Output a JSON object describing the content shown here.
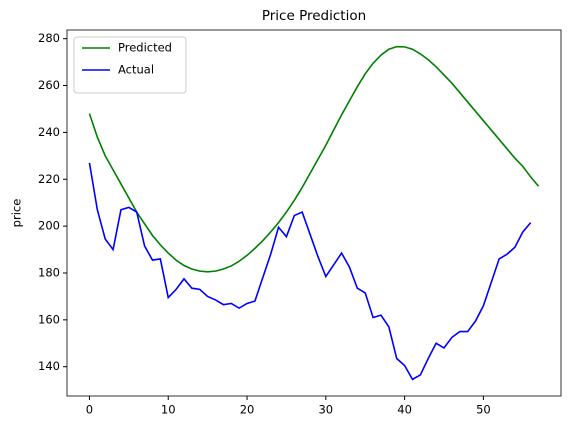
{
  "chart_data": {
    "type": "line",
    "title": "Price Prediction",
    "ylabel": "price",
    "xlim": [
      -2.85,
      59.85
    ],
    "ylim": [
      127.5,
      283.7
    ],
    "xticks": [
      0,
      10,
      20,
      30,
      40,
      50
    ],
    "yticks": [
      140,
      160,
      180,
      200,
      220,
      240,
      260,
      280
    ],
    "legend": "upper left",
    "grid": false,
    "series": [
      {
        "name": "Predicted",
        "color": "#008000",
        "x": [
          0,
          1,
          2,
          3,
          4,
          5,
          6,
          7,
          8,
          9,
          10,
          11,
          12,
          13,
          14,
          15,
          16,
          17,
          18,
          19,
          20,
          21,
          22,
          23,
          24,
          25,
          26,
          27,
          28,
          29,
          30,
          31,
          32,
          33,
          34,
          35,
          36,
          37,
          38,
          39,
          40,
          41,
          42,
          43,
          44,
          45,
          46,
          47,
          48,
          49,
          50,
          51,
          52,
          53,
          54,
          55,
          56,
          57
        ],
        "values": [
          248,
          238,
          230,
          224,
          218,
          212,
          206,
          201,
          196,
          192,
          188.5,
          185.5,
          183.2,
          181.7,
          180.8,
          180.5,
          180.8,
          181.7,
          183,
          185,
          187.5,
          190.5,
          193.8,
          197.5,
          201.5,
          206,
          211,
          216.5,
          222.5,
          228.5,
          234.5,
          241,
          247.5,
          253.5,
          259.5,
          265,
          269.5,
          273,
          275.5,
          276.6,
          276.5,
          275.5,
          273.5,
          271,
          268,
          264.5,
          261,
          257,
          253,
          249,
          245,
          241,
          237,
          233,
          229,
          225.5,
          221,
          217
        ]
      },
      {
        "name": "Actual",
        "color": "#0000ff",
        "x": [
          0,
          1,
          2,
          3,
          4,
          5,
          6,
          7,
          8,
          9,
          10,
          11,
          12,
          13,
          14,
          15,
          16,
          17,
          18,
          19,
          20,
          21,
          22,
          23,
          24,
          25,
          26,
          27,
          28,
          29,
          30,
          31,
          32,
          33,
          34,
          35,
          36,
          37,
          38,
          39,
          40,
          41,
          42,
          43,
          44,
          45,
          46,
          47,
          48,
          49,
          50,
          51,
          52,
          53,
          54,
          55,
          56
        ],
        "values": [
          227,
          207,
          194.5,
          190,
          207,
          208,
          206,
          191.5,
          185.5,
          186,
          169.5,
          173,
          177.5,
          173.5,
          173,
          170,
          168.5,
          166.5,
          167,
          165,
          167,
          168,
          178,
          188,
          199.5,
          195.5,
          204.5,
          206,
          196.5,
          187,
          178.5,
          183.5,
          188.5,
          182.5,
          173.5,
          171.5,
          161,
          162,
          157,
          143.5,
          140.5,
          134.6,
          136.5,
          143.5,
          150,
          148,
          152.5,
          155,
          155,
          159.5,
          166,
          176,
          186,
          188,
          191,
          197.5,
          201.5
        ]
      }
    ]
  }
}
